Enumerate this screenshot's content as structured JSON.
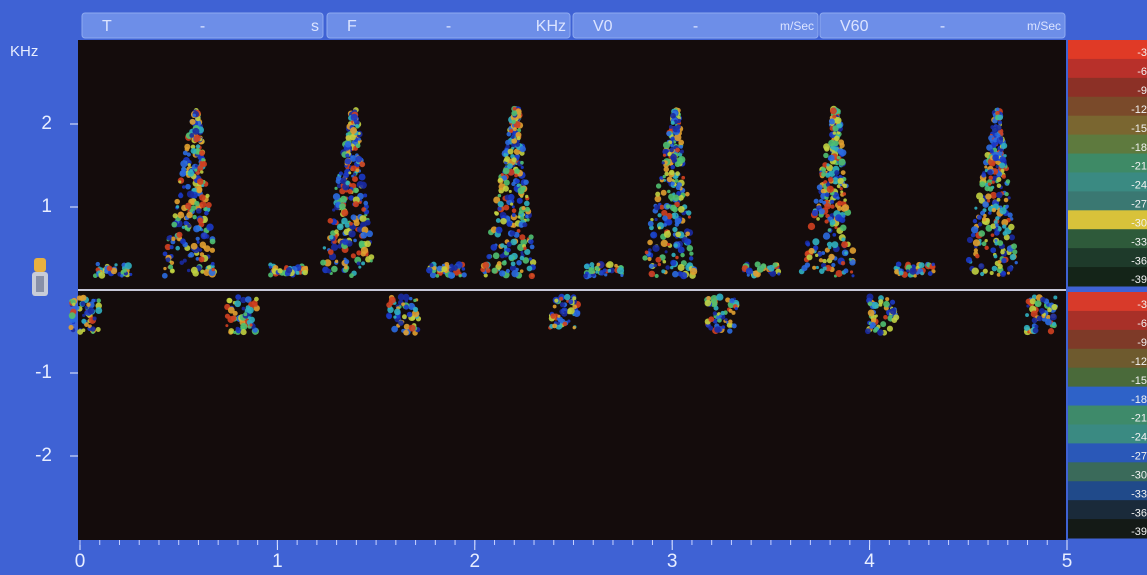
{
  "header": {
    "fields": [
      {
        "label": "T",
        "value": "-",
        "unit": "s"
      },
      {
        "label": "F",
        "value": "-",
        "unit": "KHz"
      },
      {
        "label": "V0",
        "value": "-",
        "unit": "m/Sec"
      },
      {
        "label": "V60",
        "value": "-",
        "unit": "m/Sec"
      }
    ]
  },
  "spectrogram": {
    "y_unit": "KHz",
    "yticks": [
      2,
      1,
      -1,
      -2
    ],
    "xticks": [
      0,
      1,
      2,
      3,
      4,
      5
    ]
  },
  "color_scale": {
    "upper": [
      -3,
      -6,
      -9,
      -12,
      -15,
      -18,
      -21,
      -24,
      -27,
      -30,
      -33,
      -36,
      -39
    ],
    "lower": [
      -3,
      -6,
      -9,
      -12,
      -15,
      -18,
      -21,
      -24,
      -27,
      -30,
      -33,
      -36,
      -39
    ]
  }
}
